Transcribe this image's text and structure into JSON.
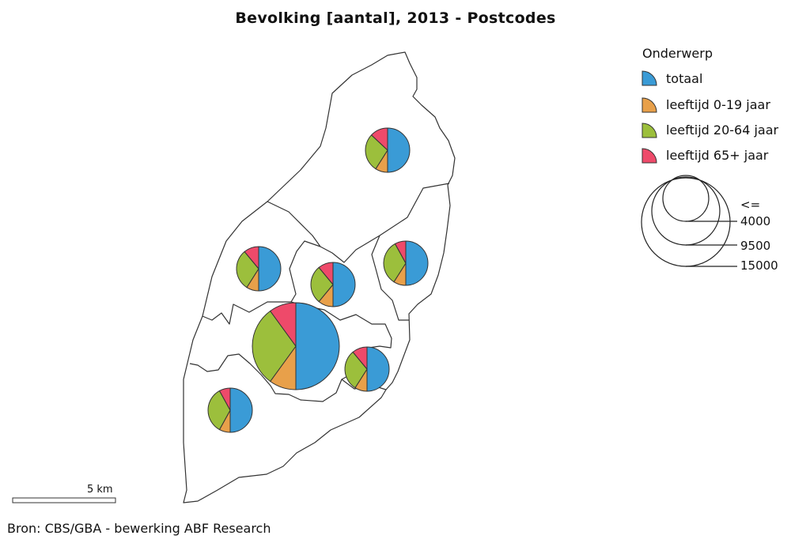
{
  "title": "Bevolking [aantal], 2013 - Postcodes",
  "legend": {
    "title": "Onderwerp",
    "items": [
      {
        "key": "totaal",
        "label": "totaal",
        "color": "#3a9bd6"
      },
      {
        "key": "age_0_19",
        "label": "leeftijd 0-19 jaar",
        "color": "#e8a04a"
      },
      {
        "key": "age_20_64",
        "label": "leeftijd 20-64 jaar",
        "color": "#9cbf3c"
      },
      {
        "key": "age_65",
        "label": "leeftijd 65+ jaar",
        "color": "#ee4a6a"
      }
    ],
    "size_legend": {
      "le_label": "<=",
      "classes": [
        "4000",
        "9500",
        "15000"
      ]
    }
  },
  "scale_bar": {
    "label": "5 km"
  },
  "source": "Bron: CBS/GBA - bewerking ABF Research",
  "pies": [
    {
      "name": "north",
      "size_class": 1,
      "totaal": 4000,
      "shares": {
        "age_0_19": 0.09,
        "age_20_64": 0.28,
        "age_65": 0.13
      }
    },
    {
      "name": "west-middle",
      "size_class": 1,
      "totaal": 4000,
      "shares": {
        "age_0_19": 0.09,
        "age_20_64": 0.3,
        "age_65": 0.11
      }
    },
    {
      "name": "center-north",
      "size_class": 1,
      "totaal": 4000,
      "shares": {
        "age_0_19": 0.11,
        "age_20_64": 0.28,
        "age_65": 0.11
      }
    },
    {
      "name": "east",
      "size_class": 1,
      "totaal": 4000,
      "shares": {
        "age_0_19": 0.09,
        "age_20_64": 0.33,
        "age_65": 0.08
      }
    },
    {
      "name": "central-city",
      "size_class": 3,
      "totaal": 15000,
      "shares": {
        "age_0_19": 0.1,
        "age_20_64": 0.3,
        "age_65": 0.1
      }
    },
    {
      "name": "south-east",
      "size_class": 1,
      "totaal": 4000,
      "shares": {
        "age_0_19": 0.09,
        "age_20_64": 0.3,
        "age_65": 0.11
      }
    },
    {
      "name": "south-west",
      "size_class": 1,
      "totaal": 4000,
      "shares": {
        "age_0_19": 0.08,
        "age_20_64": 0.34,
        "age_65": 0.08
      }
    }
  ]
}
